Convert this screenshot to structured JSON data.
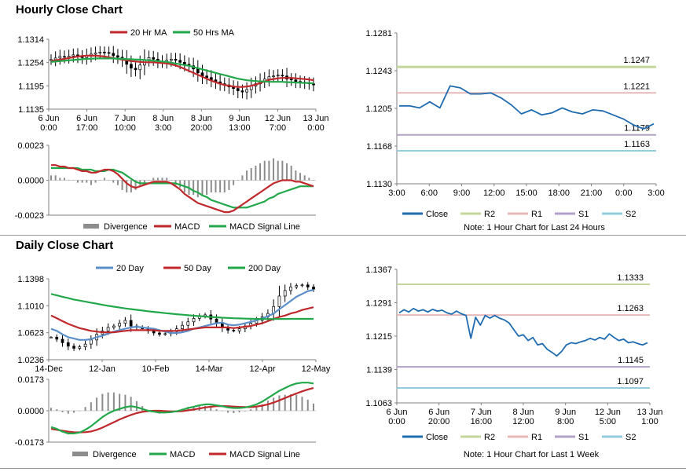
{
  "hourly": {
    "title": "Hourly Close Chart",
    "candle": {
      "type": "candlestick",
      "legend": [
        "20 Hr MA",
        "50 Hrs MA"
      ],
      "yticks": [
        "1.1314",
        "1.1254",
        "1.1195",
        "1.1135"
      ],
      "xticks": [
        [
          "6 Jun",
          "0:00"
        ],
        [
          "6 Jun",
          "17:00"
        ],
        [
          "7 Jun",
          "10:00"
        ],
        [
          "8 Jun",
          "3:00"
        ],
        [
          "8 Jun",
          "20:00"
        ],
        [
          "9 Jun",
          "13:00"
        ],
        [
          "12 Jun",
          "7:00"
        ],
        [
          "13 Jun",
          "0:00"
        ]
      ],
      "ylim": [
        1.1135,
        1.1314
      ],
      "close": [
        1.1262,
        1.1266,
        1.127,
        1.1268,
        1.1271,
        1.1274,
        1.127,
        1.1267,
        1.1272,
        1.1276,
        1.1279,
        1.1281,
        1.128,
        1.1278,
        1.1272,
        1.1268,
        1.1262,
        1.125,
        1.124,
        1.1236,
        1.1248,
        1.1262,
        1.1267,
        1.1263,
        1.1258,
        1.1256,
        1.126,
        1.1263,
        1.126,
        1.1255,
        1.125,
        1.1246,
        1.1238,
        1.1228,
        1.122,
        1.1216,
        1.121,
        1.1205,
        1.12,
        1.1197,
        1.1192,
        1.1188,
        1.1182,
        1.1179,
        1.1185,
        1.1194,
        1.12,
        1.1207,
        1.1212,
        1.1218,
        1.122,
        1.1222,
        1.122,
        1.1212,
        1.121,
        1.1206,
        1.1204,
        1.1202,
        1.12,
        1.1197
      ],
      "ma20": [
        1.1258,
        1.126,
        1.1262,
        1.1264,
        1.1266,
        1.1268,
        1.127,
        1.1271,
        1.1272,
        1.1272,
        1.1272,
        1.1271,
        1.127,
        1.1268,
        1.1266,
        1.1264,
        1.1262,
        1.126,
        1.1258,
        1.1257,
        1.1256,
        1.1255,
        1.1255,
        1.1255,
        1.1254,
        1.1253,
        1.1252,
        1.125,
        1.1247,
        1.1243,
        1.1238,
        1.1233,
        1.1228,
        1.1223,
        1.1218,
        1.1213,
        1.1208,
        1.1204,
        1.12,
        1.1197,
        1.1195,
        1.1193,
        1.1192,
        1.1192,
        1.1193,
        1.1195,
        1.1198,
        1.1202,
        1.1206,
        1.121,
        1.1212,
        1.1214,
        1.1215,
        1.1215,
        1.1215,
        1.1214,
        1.1213,
        1.1212,
        1.1211,
        1.1209
      ],
      "ma50": [
        1.1256,
        1.1257,
        1.1258,
        1.1259,
        1.126,
        1.1261,
        1.1262,
        1.1263,
        1.1264,
        1.1264,
        1.1265,
        1.1265,
        1.1265,
        1.1265,
        1.1265,
        1.1264,
        1.1264,
        1.1263,
        1.1263,
        1.1262,
        1.1262,
        1.1261,
        1.126,
        1.1259,
        1.1258,
        1.1257,
        1.1256,
        1.1254,
        1.1252,
        1.125,
        1.1248,
        1.1246,
        1.1243,
        1.124,
        1.1237,
        1.1234,
        1.1231,
        1.1228,
        1.1225,
        1.1222,
        1.1219,
        1.1216,
        1.1213,
        1.1211,
        1.1209,
        1.1208,
        1.1207,
        1.1206,
        1.1206,
        1.1205,
        1.1205,
        1.1205,
        1.1205,
        1.1204,
        1.1204,
        1.1203,
        1.1203,
        1.1202,
        1.1202,
        1.1201
      ]
    },
    "macd": {
      "legend": [
        "Divergence",
        "MACD",
        "MACD Signal Line"
      ],
      "yticks": [
        "0.0023",
        "0.0000",
        "-0.0023"
      ],
      "ylim": [
        -0.0023,
        0.0023
      ],
      "macd": [
        0.001,
        0.001,
        0.0009,
        0.0009,
        0.0008,
        0.0008,
        0.0007,
        0.0006,
        0.0006,
        0.0005,
        0.0005,
        0.0006,
        0.0007,
        0.0007,
        0.0006,
        0.0004,
        0.0001,
        -0.0002,
        -0.0004,
        -0.0005,
        -0.0004,
        -0.0003,
        -0.0002,
        -0.0001,
        -0.0001,
        -0.0001,
        -0.0001,
        -0.0002,
        -0.0004,
        -0.0006,
        -0.0009,
        -0.0011,
        -0.0013,
        -0.0015,
        -0.0016,
        -0.0017,
        -0.0018,
        -0.0019,
        -0.002,
        -0.0021,
        -0.0021,
        -0.002,
        -0.0018,
        -0.0016,
        -0.0014,
        -0.0012,
        -0.001,
        -0.0008,
        -0.0006,
        -0.0004,
        -0.0002,
        -0.0001,
        0.0,
        0.0,
        0.0,
        -0.0001,
        -0.0001,
        -0.0002,
        -0.0003,
        -0.0004
      ],
      "signal": [
        0.0008,
        0.0008,
        0.0008,
        0.0008,
        0.0008,
        0.0008,
        0.0008,
        0.0007,
        0.0007,
        0.0007,
        0.0006,
        0.0006,
        0.0006,
        0.0007,
        0.0007,
        0.0006,
        0.0005,
        0.0003,
        0.0001,
        -0.0001,
        -0.0002,
        -0.0002,
        -0.0002,
        -0.0002,
        -0.0002,
        -0.0002,
        -0.0002,
        -0.0002,
        -0.0002,
        -0.0003,
        -0.0004,
        -0.0005,
        -0.0007,
        -0.0008,
        -0.001,
        -0.0011,
        -0.0013,
        -0.0014,
        -0.0015,
        -0.0016,
        -0.0017,
        -0.0018,
        -0.0018,
        -0.0018,
        -0.0018,
        -0.0017,
        -0.0016,
        -0.0015,
        -0.0014,
        -0.0012,
        -0.0011,
        -0.0009,
        -0.0008,
        -0.0007,
        -0.0006,
        -0.0005,
        -0.0004,
        -0.0004,
        -0.0004,
        -0.0004
      ]
    },
    "levels": {
      "type": "line",
      "yticks": [
        "1.1281",
        "1.1243",
        "1.1205",
        "1.1168",
        "1.1130"
      ],
      "xticks": [
        "3:00",
        "6:00",
        "9:00",
        "12:00",
        "15:00",
        "18:00",
        "21:00",
        "0:00",
        "3:00"
      ],
      "ylim": [
        1.113,
        1.1281
      ],
      "close": [
        1.1208,
        1.1208,
        1.1206,
        1.1212,
        1.1206,
        1.1228,
        1.1226,
        1.122,
        1.122,
        1.1221,
        1.1216,
        1.1209,
        1.12,
        1.1204,
        1.1199,
        1.1201,
        1.1206,
        1.1202,
        1.12,
        1.1204,
        1.1203,
        1.1199,
        1.1195,
        1.1189,
        1.1185,
        1.119
      ],
      "levels": [
        {
          "name": "R2",
          "value": 1.1247,
          "label": "1.1247",
          "color": "#c3d69b"
        },
        {
          "name": "R1",
          "value": 1.1221,
          "label": "1.1221",
          "color": "#e6b9b8"
        },
        {
          "name": "S1",
          "value": 1.1179,
          "label": "1.1179",
          "color": "#b3a2c7"
        },
        {
          "name": "S2",
          "value": 1.1163,
          "label": "1.1163",
          "color": "#93cddd"
        }
      ],
      "legend": [
        "Close",
        "R2",
        "R1",
        "S1",
        "S2"
      ],
      "note": "Note: 1 Hour Chart for Last 24 Hours"
    }
  },
  "daily": {
    "title": "Daily Close Chart",
    "candle": {
      "type": "candlestick",
      "legend": [
        "20 Day",
        "50 Day",
        "200 Day"
      ],
      "yticks": [
        "1.1398",
        "1.1010",
        "1.0623",
        "1.0236"
      ],
      "xticks": [
        "14-Dec",
        "12-Jan",
        "10-Feb",
        "14-Mar",
        "12-Apr",
        "12-May"
      ],
      "ylim": [
        1.0236,
        1.1398
      ],
      "close": [
        1.056,
        1.053,
        1.048,
        1.043,
        1.04,
        1.042,
        1.046,
        1.052,
        1.06,
        1.065,
        1.07,
        1.072,
        1.076,
        1.08,
        1.072,
        1.07,
        1.068,
        1.065,
        1.062,
        1.06,
        1.061,
        1.064,
        1.068,
        1.073,
        1.078,
        1.083,
        1.086,
        1.088,
        1.082,
        1.076,
        1.07,
        1.066,
        1.065,
        1.068,
        1.072,
        1.076,
        1.08,
        1.085,
        1.09,
        1.1,
        1.115,
        1.123,
        1.128,
        1.13,
        1.131,
        1.128,
        1.125
      ],
      "ma20": [
        1.068,
        1.065,
        1.06,
        1.056,
        1.054,
        1.052,
        1.052,
        1.053,
        1.056,
        1.058,
        1.061,
        1.064,
        1.066,
        1.068,
        1.07,
        1.071,
        1.07,
        1.069,
        1.068,
        1.066,
        1.064,
        1.062,
        1.062,
        1.063,
        1.065,
        1.068,
        1.07,
        1.072,
        1.074,
        1.076,
        1.077,
        1.074,
        1.073,
        1.074,
        1.076,
        1.078,
        1.08,
        1.083,
        1.086,
        1.09,
        1.096,
        1.102,
        1.108,
        1.114,
        1.118,
        1.122,
        1.124
      ],
      "ma50": [
        1.087,
        1.083,
        1.079,
        1.075,
        1.072,
        1.069,
        1.067,
        1.065,
        1.064,
        1.063,
        1.063,
        1.063,
        1.064,
        1.065,
        1.066,
        1.066,
        1.066,
        1.066,
        1.066,
        1.065,
        1.065,
        1.065,
        1.065,
        1.066,
        1.067,
        1.068,
        1.069,
        1.07,
        1.07,
        1.07,
        1.07,
        1.07,
        1.069,
        1.07,
        1.071,
        1.072,
        1.074,
        1.076,
        1.079,
        1.082,
        1.085,
        1.087,
        1.09,
        1.092,
        1.095,
        1.097,
        1.099
      ],
      "ma200": [
        1.118,
        1.116,
        1.114,
        1.112,
        1.11,
        1.1085,
        1.107,
        1.1055,
        1.104,
        1.1025,
        1.101,
        1.0998,
        1.0985,
        1.0973,
        1.0962,
        1.0952,
        1.0942,
        1.0932,
        1.0923,
        1.0914,
        1.0905,
        1.0897,
        1.0889,
        1.0882,
        1.0875,
        1.0868,
        1.0862,
        1.0856,
        1.085,
        1.0845,
        1.084,
        1.0836,
        1.0832,
        1.0829,
        1.0826,
        1.0824,
        1.0822,
        1.0821,
        1.082,
        1.082,
        1.0821,
        1.0822,
        1.0823,
        1.0823,
        1.0823,
        1.0823,
        1.0823
      ]
    },
    "macd": {
      "legend": [
        "Divergence",
        "MACD",
        "MACD Signal Line"
      ],
      "yticks": [
        "0.0173",
        "0.0000",
        "-0.0173"
      ],
      "ylim": [
        -0.0173,
        0.0173
      ],
      "macd": [
        -0.009,
        -0.01,
        -0.0115,
        -0.0125,
        -0.0125,
        -0.012,
        -0.0105,
        -0.0085,
        -0.006,
        -0.0035,
        -0.0015,
        0.0,
        0.001,
        0.002,
        0.0025,
        0.002,
        0.001,
        0.0,
        -0.0005,
        -0.001,
        -0.001,
        -0.0008,
        -0.0003,
        0.0005,
        0.0015,
        0.0022,
        0.003,
        0.0035,
        0.0035,
        0.003,
        0.0025,
        0.0018,
        0.0015,
        0.0015,
        0.0018,
        0.0025,
        0.0035,
        0.005,
        0.007,
        0.009,
        0.011,
        0.0125,
        0.014,
        0.015,
        0.0155,
        0.0155,
        0.015
      ],
      "signal": [
        -0.01,
        -0.0105,
        -0.011,
        -0.0115,
        -0.0118,
        -0.0119,
        -0.0118,
        -0.0114,
        -0.0105,
        -0.0093,
        -0.0078,
        -0.0063,
        -0.0048,
        -0.0035,
        -0.0023,
        -0.0013,
        -0.0006,
        -0.0002,
        0.0,
        0.0,
        -0.0002,
        -0.0004,
        -0.0004,
        -0.0002,
        0.0002,
        0.0007,
        0.0012,
        0.0018,
        0.0022,
        0.0025,
        0.0026,
        0.0025,
        0.0023,
        0.0021,
        0.002,
        0.002,
        0.0023,
        0.0028,
        0.0035,
        0.0045,
        0.0057,
        0.007,
        0.0083,
        0.0095,
        0.0107,
        0.0117,
        0.0125
      ]
    },
    "levels": {
      "type": "line",
      "yticks": [
        "1.1367",
        "1.1291",
        "1.1215",
        "1.1139",
        "1.1063"
      ],
      "xticks": [
        [
          "6 Jun",
          "0:00"
        ],
        [
          "6 Jun",
          "20:00"
        ],
        [
          "7 Jun",
          "16:00"
        ],
        [
          "8 Jun",
          "12:00"
        ],
        [
          "9 Jun",
          "8:00"
        ],
        [
          "12 Jun",
          "5:00"
        ],
        [
          "13 Jun",
          "1:00"
        ]
      ],
      "ylim": [
        1.1063,
        1.1367
      ],
      "close": [
        1.1268,
        1.1275,
        1.127,
        1.1278,
        1.1272,
        1.1275,
        1.127,
        1.1276,
        1.1272,
        1.1274,
        1.1268,
        1.1265,
        1.1272,
        1.1266,
        1.1262,
        1.121,
        1.1258,
        1.124,
        1.1262,
        1.1256,
        1.1262,
        1.1256,
        1.1252,
        1.1245,
        1.123,
        1.1215,
        1.1218,
        1.1205,
        1.1212,
        1.1195,
        1.1198,
        1.1185,
        1.1178,
        1.117,
        1.118,
        1.1195,
        1.12,
        1.1198,
        1.1202,
        1.1205,
        1.121,
        1.1206,
        1.1212,
        1.1208,
        1.122,
        1.1212,
        1.1205,
        1.1208,
        1.12,
        1.1202,
        1.1198,
        1.1195,
        1.12
      ],
      "levels": [
        {
          "name": "R2",
          "value": 1.1333,
          "label": "1.1333",
          "color": "#c3d69b"
        },
        {
          "name": "R1",
          "value": 1.1263,
          "label": "1.1263",
          "color": "#e6b9b8"
        },
        {
          "name": "S1",
          "value": 1.1145,
          "label": "1.1145",
          "color": "#b3a2c7"
        },
        {
          "name": "S2",
          "value": 1.1097,
          "label": "1.1097",
          "color": "#93cddd"
        }
      ],
      "legend": [
        "Close",
        "R2",
        "R1",
        "S1",
        "S2"
      ],
      "note": "Note: 1 Hour Chart for Last 1 Week"
    }
  },
  "colors": {
    "ma_short": "#c0282b",
    "ma_long": "#22a84a",
    "ma_blue": "#5b8fc9",
    "close": "#1f6bb0",
    "divergence": "#8c8c8c",
    "candle": "#000000",
    "axis": "#808080"
  }
}
